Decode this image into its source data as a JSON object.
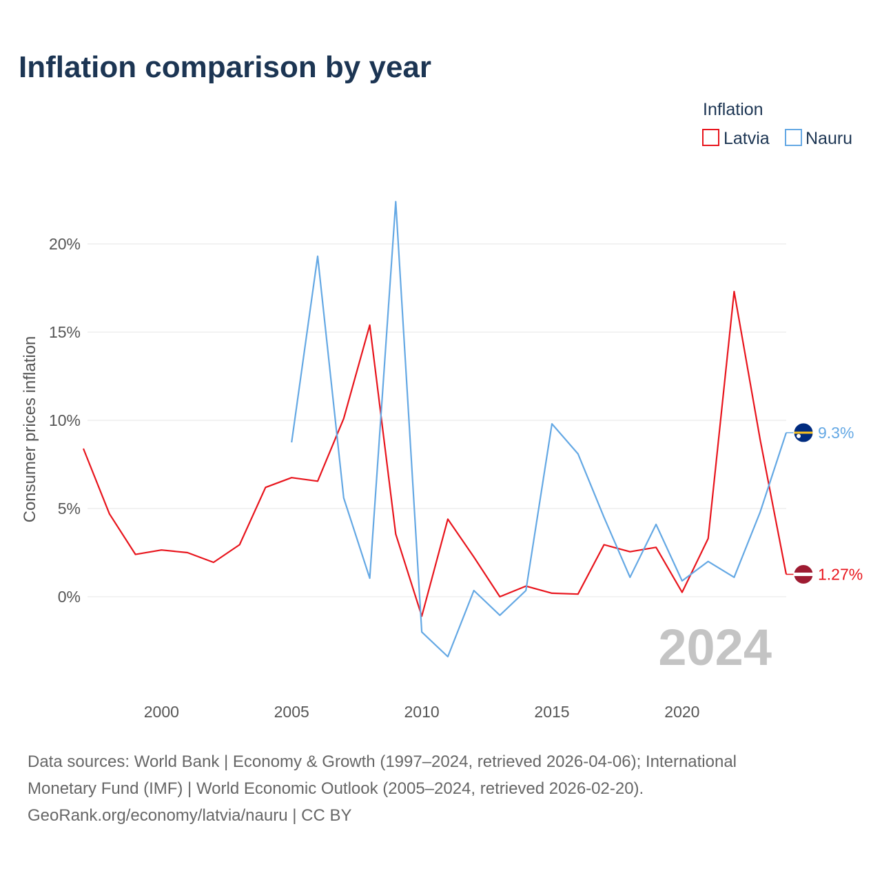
{
  "colors": {
    "latvia": "#e8141c",
    "nauru": "#64a8e4",
    "title": "#1c3553",
    "grid": "#e6e6e6",
    "year_watermark": "#c4c4c4"
  },
  "chart_data": {
    "type": "line",
    "title": "Inflation comparison by year",
    "xlabel": "",
    "ylabel": "Consumer prices inflation",
    "legend_title": "Inflation",
    "legend_position": "top-right",
    "xlim": [
      1997,
      2024
    ],
    "ylim": [
      -4.5,
      23
    ],
    "x_ticks": [
      2000,
      2005,
      2010,
      2015,
      2020
    ],
    "y_ticks": [
      0,
      5,
      10,
      15,
      20
    ],
    "y_tick_labels": [
      "0%",
      "5%",
      "10%",
      "15%",
      "20%"
    ],
    "current_year": "2024",
    "series": [
      {
        "name": "Latvia",
        "color_key": "latvia",
        "flag_icon": "latvia-flag-icon",
        "end_label": "1.27%",
        "x": [
          1997,
          1998,
          1999,
          2000,
          2001,
          2002,
          2003,
          2004,
          2005,
          2006,
          2007,
          2008,
          2009,
          2010,
          2011,
          2012,
          2013,
          2014,
          2015,
          2016,
          2017,
          2018,
          2019,
          2020,
          2021,
          2022,
          2023,
          2024
        ],
        "values": [
          8.4,
          4.7,
          2.4,
          2.65,
          2.5,
          1.95,
          2.95,
          6.2,
          6.75,
          6.55,
          10.1,
          15.4,
          3.55,
          -1.1,
          4.4,
          2.25,
          0.0,
          0.6,
          0.2,
          0.15,
          2.95,
          2.55,
          2.8,
          0.25,
          3.3,
          17.3,
          8.9,
          1.27
        ]
      },
      {
        "name": "Nauru",
        "color_key": "nauru",
        "flag_icon": "nauru-flag-icon",
        "end_label": "9.3%",
        "x": [
          2005,
          2006,
          2007,
          2008,
          2009,
          2010,
          2011,
          2012,
          2013,
          2014,
          2015,
          2016,
          2017,
          2018,
          2019,
          2020,
          2021,
          2022,
          2023,
          2024
        ],
        "values": [
          8.75,
          19.3,
          5.6,
          1.05,
          22.4,
          -2.0,
          -3.4,
          0.35,
          -1.05,
          0.35,
          9.8,
          8.1,
          4.5,
          1.1,
          4.1,
          0.9,
          2.0,
          1.1,
          4.8,
          9.3
        ]
      }
    ]
  },
  "footer": {
    "line1": "Data sources: World Bank | Economy & Growth (1997–2024, retrieved 2026-04-06); International",
    "line2": "Monetary Fund (IMF) | World Economic Outlook (2005–2024, retrieved 2026-02-20).",
    "line3": "GeoRank.org/economy/latvia/nauru | CC BY"
  }
}
